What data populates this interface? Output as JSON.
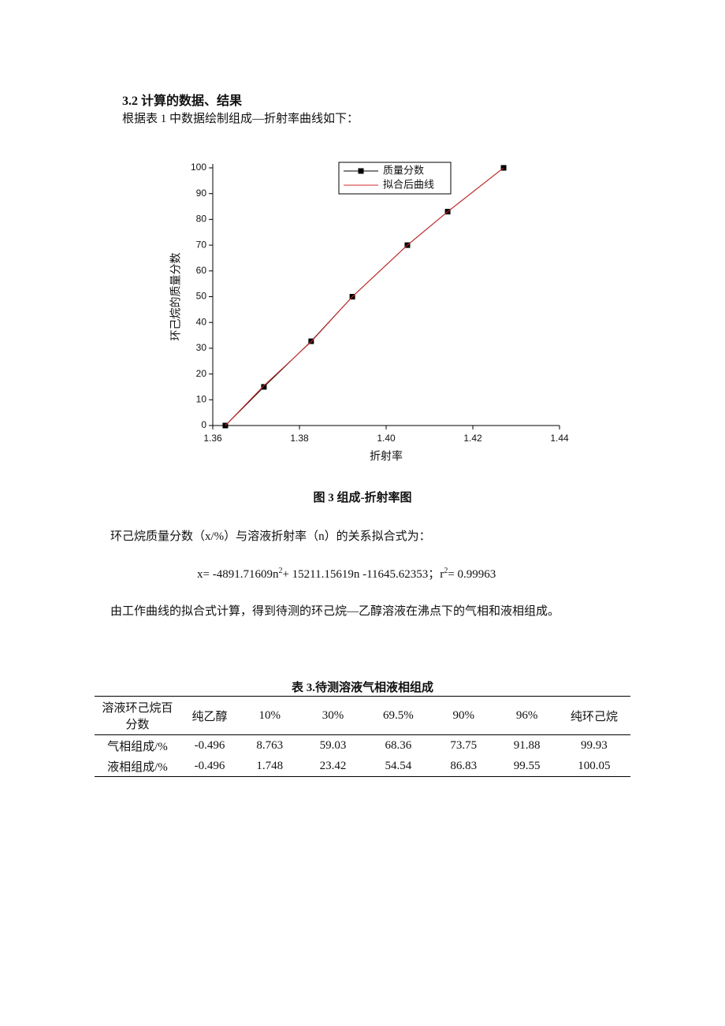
{
  "section_title": "3.2 计算的数据、结果",
  "intro": "根据表 1 中数据绘制组成—折射率曲线如下：",
  "chart_data": {
    "type": "line",
    "x_label": "折射率",
    "y_label": "环己烷的质量分数",
    "x": [
      1.3629,
      1.3718,
      1.3827,
      1.3922,
      1.4049,
      1.4142,
      1.4271
    ],
    "series": [
      {
        "name": "质量分数",
        "color": "#000000",
        "values": [
          0,
          15,
          32.7,
          50,
          70,
          83,
          100
        ]
      },
      {
        "name": "拟合后曲线",
        "color": "#d42a2a",
        "values": [
          0,
          15.5,
          32.5,
          50,
          70,
          83,
          100
        ]
      }
    ],
    "xlim": [
      1.36,
      1.44
    ],
    "xticks": [
      1.36,
      1.38,
      {
        "value": 1.4,
        "label": "1.40"
      },
      1.42,
      1.44
    ],
    "ylim": [
      0,
      100
    ],
    "yticks": [
      0,
      10,
      20,
      30,
      40,
      50,
      60,
      70,
      80,
      90,
      100
    ],
    "legend": "top-right"
  },
  "figure_caption": "图 3  组成-折射率图",
  "fit_intro": "环己烷质量分数（x/%）与溶液折射率（n）的关系拟合式为：",
  "formula": [
    "x= -4891.71609n",
    "2",
    "+ 15211.15619n -11645.62353；r",
    "2",
    "= 0.99963"
  ],
  "conclusion": "由工作曲线的拟合式计算，得到待测的环己烷—乙醇溶液在沸点下的气相和液相组成。",
  "table": {
    "caption": "表 3.待测溶液气相液相组成",
    "header": [
      "溶液环己烷百分数",
      "纯乙醇",
      "10%",
      "30%",
      "69.5%",
      "90%",
      "96%",
      "纯环己烷"
    ],
    "rows": [
      [
        "气相组成/%",
        -0.496,
        8.763,
        59.03,
        68.36,
        73.75,
        91.88,
        99.93
      ],
      [
        "液相组成/%",
        -0.496,
        1.748,
        23.42,
        54.54,
        86.83,
        99.55,
        100.05
      ]
    ]
  }
}
